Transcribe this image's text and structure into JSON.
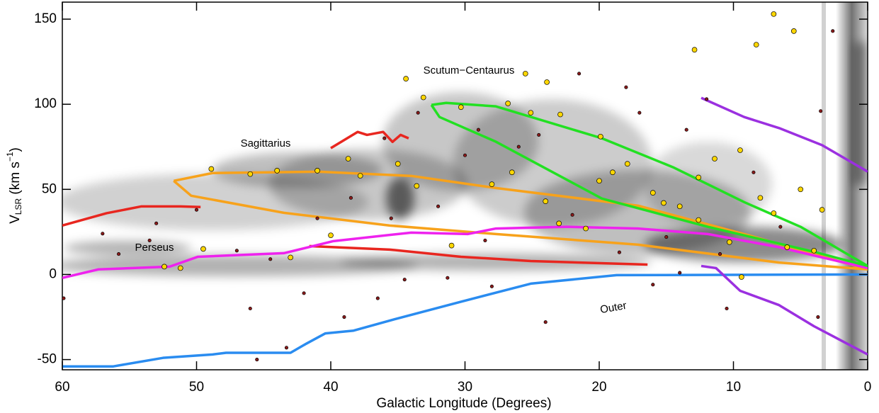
{
  "chart_data": {
    "type": "scatter",
    "x_label": "Galactic Longitude (Degrees)",
    "y_label_parts": [
      "V",
      "LSR",
      " (km s",
      "−1",
      ")"
    ],
    "annotations": [
      "Sagittarius",
      "Perseus",
      "Scutum−Centaurus",
      "Outer"
    ],
    "xlim": [
      60,
      0
    ],
    "ylim": [
      -56,
      160
    ],
    "xticks": [
      60,
      50,
      40,
      30,
      20,
      10,
      0
    ],
    "yticks": [
      -50,
      0,
      50,
      100,
      150
    ],
    "series": [
      {
        "mode": "line",
        "color": "#e8261f",
        "x": [
          60,
          56.7,
          54.1,
          51.2,
          49.7
        ],
        "values": [
          28.75,
          36,
          40,
          40,
          39.6
        ]
      },
      {
        "mode": "line",
        "color": "#e8261f",
        "x": [
          41.6,
          35.6,
          30.3,
          25.1,
          16.4
        ],
        "values": [
          16.7,
          14.6,
          10.4,
          7.9,
          5.8
        ]
      },
      {
        "mode": "line",
        "color": "#e8261f",
        "x": [
          40,
          38,
          37.3,
          36.1,
          35.4,
          34.8,
          34.2
        ],
        "values": [
          74.2,
          83.75,
          82,
          83.75,
          77.9,
          82,
          80
        ]
      },
      {
        "mode": "line",
        "color": "#f7a21b",
        "x": [
          51.7,
          48.8,
          40.9,
          34,
          27.7,
          17.1,
          9.2,
          0,
          6.6,
          17.1,
          27.7,
          35.6,
          43.5,
          50.4,
          51.7
        ],
        "values": [
          55,
          59.6,
          60.4,
          57.9,
          50.8,
          40.4,
          23.75,
          3,
          7,
          17.5,
          23.75,
          28.75,
          36.25,
          46.25,
          55
        ]
      },
      {
        "mode": "line",
        "color": "#ee22ee",
        "x": [
          60,
          57.3,
          52,
          49.9,
          43.5,
          39.8,
          34,
          29.8,
          27.7,
          22.4,
          17.1,
          11.9,
          6.6,
          0
        ],
        "values": [
          -2,
          3,
          4.6,
          10.4,
          12.5,
          19.6,
          24.6,
          23.75,
          27,
          28,
          27,
          23.75,
          16,
          3.75
        ]
      },
      {
        "mode": "line",
        "color": "#22e022",
        "x": [
          32.5,
          31.4,
          27.7,
          19.8,
          14.5,
          9.2,
          5,
          0,
          4,
          11.9,
          19.8,
          27.7,
          31.9,
          32.5
        ],
        "values": [
          99.6,
          100.8,
          98.75,
          80,
          63,
          42.5,
          28,
          5,
          13.3,
          28,
          44.6,
          78,
          92.5,
          99.6
        ]
      },
      {
        "mode": "line",
        "color": "#2a8cf0",
        "x": [
          60,
          56.2,
          52.5,
          48.8,
          47.8,
          43,
          41.9,
          40.4,
          38.3,
          35.1,
          30.3,
          25.1,
          18.7,
          0
        ],
        "values": [
          -54,
          -54,
          -49,
          -47,
          -46,
          -46,
          -41,
          -34.6,
          -33,
          -26,
          -16,
          -5.4,
          -0.4,
          0
        ]
      },
      {
        "mode": "line",
        "color": "#9b30e0",
        "x": [
          12.4,
          9.2,
          6.6,
          3.4,
          0
        ],
        "values": [
          103.75,
          92.5,
          86,
          76,
          60.4
        ]
      },
      {
        "mode": "line",
        "color": "#9b30e0",
        "x": [
          12.4,
          11.3,
          9.5,
          6.6,
          4,
          0
        ],
        "values": [
          5,
          3.75,
          -9.6,
          -18,
          -30.4,
          -47
        ]
      },
      {
        "mode": "markers",
        "color": "#ffd700",
        "x": [
          48.9,
          52.4,
          51.2,
          43,
          49.5,
          30.3,
          33.1,
          23.9,
          25.1,
          22.9,
          34.4,
          25.5,
          26.8,
          19.9,
          17.9,
          19,
          15.2,
          11.4,
          9.5,
          12.6,
          8,
          5,
          3.4,
          7,
          10.3,
          12.6,
          14,
          16,
          20,
          26.5,
          35,
          37.8,
          41,
          44,
          46,
          28,
          24,
          21,
          23,
          31,
          40,
          6,
          4,
          9.4,
          7,
          5.5,
          12.9,
          8.3,
          33.6,
          38.7
        ],
        "values": [
          62,
          4.6,
          3.75,
          10,
          15,
          98.3,
          104,
          113,
          95,
          94,
          115,
          118,
          100.5,
          81,
          65,
          60,
          42,
          68,
          73,
          57,
          45,
          50,
          38,
          36,
          19,
          32,
          40,
          48,
          55,
          60,
          65,
          58,
          61,
          61,
          59,
          53,
          43,
          27,
          30,
          17,
          23,
          16,
          14,
          -1.5,
          153,
          143,
          132,
          135,
          52,
          68
        ]
      },
      {
        "mode": "markers",
        "color": "#8b1a1a",
        "x": [
          59.9,
          55.8,
          53.5,
          50,
          47,
          44.5,
          46,
          45.5,
          43.3,
          42,
          39,
          36.5,
          34.5,
          31.3,
          28,
          24,
          16,
          14,
          10.5,
          3.7,
          3.5,
          2.6,
          12,
          18,
          21.5,
          29,
          33.5,
          36,
          38.5,
          32,
          28.5,
          22,
          18.5,
          15,
          11,
          6.5,
          8.5,
          13.5,
          17,
          26,
          41,
          53,
          57,
          35.5,
          30,
          24.5
        ],
        "values": [
          -14,
          12,
          20,
          38,
          14,
          9,
          -20,
          -50,
          -43,
          -11,
          -25,
          -14,
          -3,
          -2,
          -7,
          -28,
          -6,
          1,
          -20,
          -25,
          96,
          143,
          103,
          110,
          118,
          85,
          95,
          80,
          45,
          40,
          20,
          35,
          13,
          22,
          12,
          28,
          60,
          85,
          95,
          75,
          33,
          30,
          24,
          33,
          70,
          82
        ]
      }
    ]
  }
}
